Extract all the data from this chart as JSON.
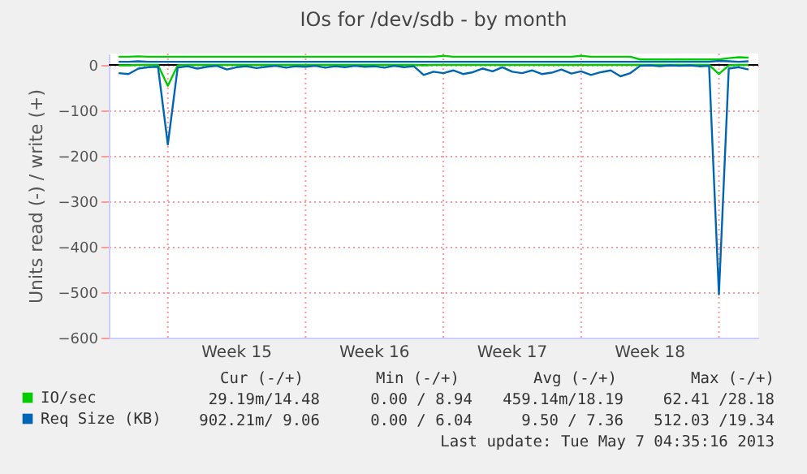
{
  "chart_data": {
    "type": "line",
    "title": "IOs for /dev/sdb - by month",
    "ylabel": "Units read (-) / write (+)",
    "x": [
      "2013-04-05T12:00",
      "2013-04-06T00:00",
      "2013-04-06T12:00",
      "2013-04-07T00:00",
      "2013-04-07T12:00",
      "2013-04-08T00:00",
      "2013-04-08T12:00",
      "2013-04-09T00:00",
      "2013-04-09T12:00",
      "2013-04-10T00:00",
      "2013-04-10T12:00",
      "2013-04-11T00:00",
      "2013-04-11T12:00",
      "2013-04-12T00:00",
      "2013-04-12T12:00",
      "2013-04-13T00:00",
      "2013-04-13T12:00",
      "2013-04-14T00:00",
      "2013-04-14T12:00",
      "2013-04-15T00:00",
      "2013-04-15T12:00",
      "2013-04-16T00:00",
      "2013-04-16T12:00",
      "2013-04-17T00:00",
      "2013-04-17T12:00",
      "2013-04-18T00:00",
      "2013-04-18T12:00",
      "2013-04-19T00:00",
      "2013-04-19T12:00",
      "2013-04-20T00:00",
      "2013-04-20T12:00",
      "2013-04-21T00:00",
      "2013-04-21T12:00",
      "2013-04-22T00:00",
      "2013-04-22T12:00",
      "2013-04-23T00:00",
      "2013-04-23T12:00",
      "2013-04-24T00:00",
      "2013-04-24T12:00",
      "2013-04-25T00:00",
      "2013-04-25T12:00",
      "2013-04-26T00:00",
      "2013-04-26T12:00",
      "2013-04-27T00:00",
      "2013-04-27T12:00",
      "2013-04-28T00:00",
      "2013-04-28T12:00",
      "2013-04-29T00:00",
      "2013-04-29T12:00",
      "2013-04-30T00:00",
      "2013-04-30T12:00",
      "2013-05-01T00:00",
      "2013-05-01T12:00",
      "2013-05-02T00:00",
      "2013-05-02T12:00",
      "2013-05-03T00:00",
      "2013-05-03T12:00",
      "2013-05-04T00:00",
      "2013-05-04T12:00",
      "2013-05-05T00:00",
      "2013-05-05T12:00",
      "2013-05-06T00:00",
      "2013-05-06T12:00",
      "2013-05-07T00:00",
      "2013-05-07T12:00"
    ],
    "series": [
      {
        "name": "IO/sec",
        "color": "#00cc00",
        "values": [
          18,
          18,
          19,
          18,
          18,
          18,
          18,
          18,
          18,
          18,
          18,
          18,
          18,
          18,
          18,
          18,
          18,
          18,
          18,
          18,
          18,
          18,
          18,
          18,
          18,
          18,
          18,
          18,
          18,
          18,
          18,
          18,
          18,
          20,
          18,
          18,
          18,
          18,
          18,
          18,
          18,
          18,
          18,
          18,
          18,
          18,
          18,
          20,
          18,
          18,
          18,
          18,
          18,
          12,
          12,
          12,
          12,
          12,
          12,
          12,
          12,
          12,
          15,
          17,
          16
        ]
      },
      {
        "name": "Req Size (KB)",
        "color": "#0066b3",
        "values": [
          7,
          7,
          8,
          7,
          7,
          7,
          7,
          7,
          7,
          7,
          7,
          7,
          7,
          7,
          7,
          7,
          7,
          7,
          7,
          7,
          7,
          7,
          7,
          7,
          7,
          7,
          7,
          7,
          7,
          7,
          7,
          7,
          7,
          7,
          7,
          7,
          7,
          7,
          7,
          7,
          7,
          7,
          7,
          7,
          7,
          7,
          7,
          7,
          7,
          7,
          7,
          7,
          7,
          7,
          7,
          7,
          7,
          7,
          7,
          7,
          7,
          9,
          8,
          7,
          8
        ]
      },
      {
        "color": "#00cc00",
        "values": [
          -1,
          -1,
          0,
          0,
          0,
          -46,
          -1,
          0,
          0,
          0,
          0,
          0,
          0,
          0,
          0,
          0,
          0,
          0,
          0,
          0,
          0,
          0,
          0,
          0,
          0,
          0,
          0,
          0,
          0,
          0,
          0,
          -1,
          0,
          0,
          0,
          0,
          0,
          0,
          0,
          0,
          0,
          0,
          0,
          0,
          0,
          0,
          0,
          0,
          0,
          0,
          0,
          0,
          0,
          0,
          0,
          0,
          0,
          0,
          0,
          0,
          0,
          -20,
          -1,
          0,
          0
        ]
      },
      {
        "color": "#0066b3",
        "values": [
          -18,
          -20,
          -8,
          -5,
          -4,
          -175,
          -6,
          -3,
          -8,
          -4,
          -2,
          -10,
          -5,
          -3,
          -7,
          -4,
          -2,
          -6,
          -3,
          -4,
          -2,
          -6,
          -3,
          -5,
          -2,
          -4,
          -3,
          -6,
          -2,
          -5,
          -3,
          -22,
          -15,
          -18,
          -12,
          -20,
          -16,
          -8,
          -14,
          -5,
          -15,
          -18,
          -12,
          -20,
          -17,
          -10,
          -19,
          -14,
          -22,
          -16,
          -12,
          -25,
          -18,
          -2,
          -1,
          -3,
          -1,
          -2,
          -1,
          -3,
          -2,
          -505,
          -8,
          -5,
          -10
        ]
      }
    ],
    "xlim": [
      "2013-04-05T00:00",
      "2013-05-08T00:00"
    ],
    "xticks": [
      {
        "value": "2013-04-08T00:00",
        "label": null
      },
      {
        "value": "2013-04-11T12:00",
        "label": "Week 15"
      },
      {
        "value": "2013-04-15T00:00",
        "label": null
      },
      {
        "value": "2013-04-18T12:00",
        "label": "Week 16"
      },
      {
        "value": "2013-04-22T00:00",
        "label": null
      },
      {
        "value": "2013-04-25T12:00",
        "label": "Week 17"
      },
      {
        "value": "2013-04-29T00:00",
        "label": null
      },
      {
        "value": "2013-05-02T12:00",
        "label": "Week 18"
      },
      {
        "value": "2013-05-06T00:00",
        "label": null
      }
    ],
    "ylim": [
      -600,
      25
    ],
    "yticks": [
      -600,
      -500,
      -400,
      -300,
      -200,
      -100,
      0
    ],
    "grid": true,
    "legend": "bottom",
    "ref_lines": [
      {
        "axis": "y",
        "value": 0,
        "color": "#000000"
      }
    ],
    "annotations": [
      "Cur (-/+)",
      "Min (-/+)",
      "Avg (-/+)",
      "Max (-/+)",
      "29.19m/14.48",
      "0.00 / 8.94",
      "459.14m/18.19",
      "62.41 /28.18",
      "902.21m/ 9.06",
      "0.00 / 6.04",
      "9.50 / 7.36",
      "512.03 /19.34",
      "Last update: Tue May  7 04:35:16 2013"
    ]
  }
}
